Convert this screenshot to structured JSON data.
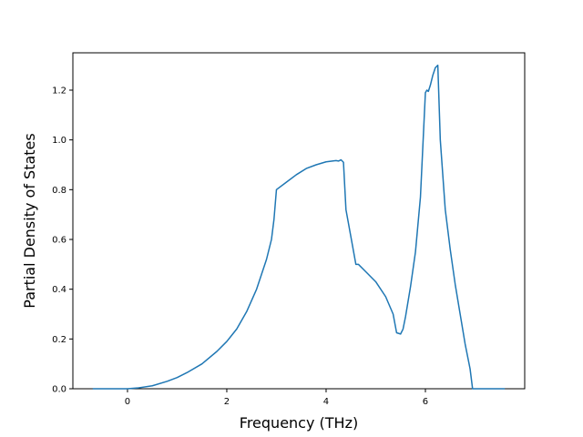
{
  "chart_data": {
    "type": "line",
    "xlabel": "Frequency (THz)",
    "ylabel": "Partial Density of States",
    "xlim": [
      -1.1,
      8.0
    ],
    "ylim": [
      0.0,
      1.35
    ],
    "xticks": [
      0,
      2,
      4,
      6
    ],
    "yticks": [
      0.0,
      0.2,
      0.4,
      0.6,
      0.8,
      1.0,
      1.2
    ],
    "xtick_labels": [
      "0",
      "2",
      "4",
      "6"
    ],
    "ytick_labels": [
      "0.0",
      "0.2",
      "0.4",
      "0.6",
      "0.8",
      "1.0",
      "1.2"
    ],
    "grid": false,
    "series": [
      {
        "color": "#1f77b4",
        "x": [
          -0.7,
          -0.2,
          0.0,
          0.2,
          0.5,
          0.8,
          1.0,
          1.2,
          1.5,
          1.8,
          2.0,
          2.2,
          2.4,
          2.6,
          2.7,
          2.8,
          2.9,
          2.95,
          3.0,
          3.2,
          3.4,
          3.6,
          3.8,
          4.0,
          4.2,
          4.25,
          4.3,
          4.35,
          4.4,
          4.5,
          4.6,
          4.65,
          4.8,
          5.0,
          5.2,
          5.35,
          5.42,
          5.5,
          5.55,
          5.6,
          5.7,
          5.8,
          5.9,
          6.0,
          6.03,
          6.06,
          6.1,
          6.15,
          6.2,
          6.25,
          6.3,
          6.4,
          6.5,
          6.6,
          6.7,
          6.8,
          6.9,
          6.95,
          7.2,
          7.6
        ],
        "y": [
          0.0,
          0.0,
          0.0,
          0.003,
          0.012,
          0.03,
          0.045,
          0.065,
          0.1,
          0.15,
          0.19,
          0.24,
          0.31,
          0.4,
          0.46,
          0.52,
          0.6,
          0.68,
          0.8,
          0.83,
          0.86,
          0.885,
          0.9,
          0.912,
          0.917,
          0.915,
          0.92,
          0.91,
          0.72,
          0.61,
          0.5,
          0.5,
          0.47,
          0.43,
          0.37,
          0.3,
          0.225,
          0.22,
          0.24,
          0.29,
          0.41,
          0.55,
          0.77,
          1.19,
          1.2,
          1.195,
          1.22,
          1.26,
          1.29,
          1.3,
          1.0,
          0.72,
          0.56,
          0.42,
          0.3,
          0.18,
          0.08,
          0.0,
          0.0,
          0.0
        ]
      }
    ]
  }
}
